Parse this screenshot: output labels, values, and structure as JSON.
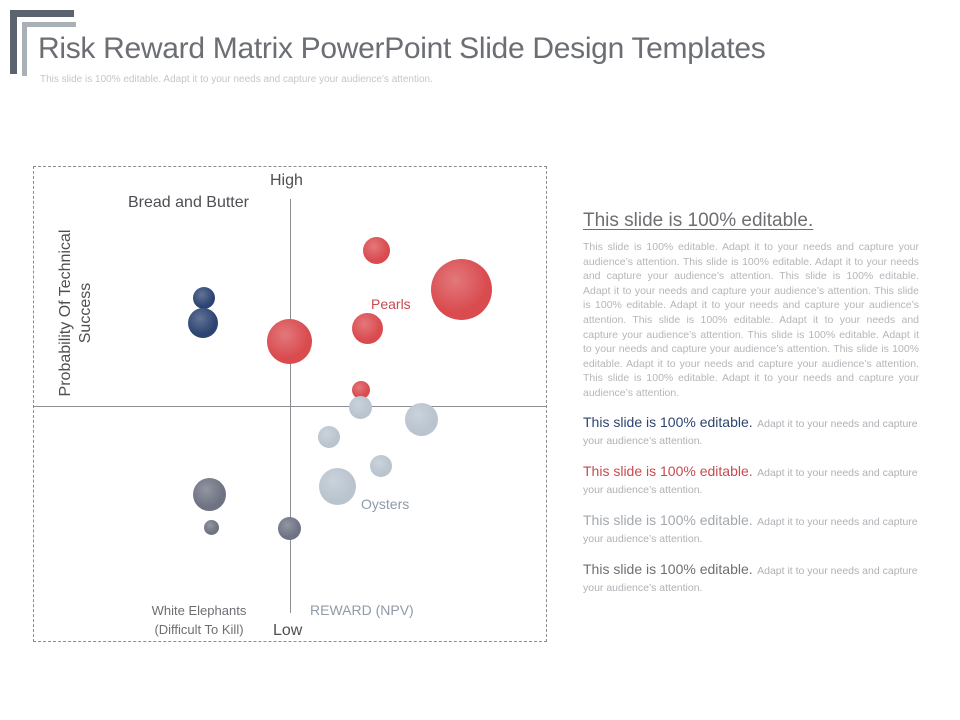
{
  "slide": {
    "title": "Risk Reward Matrix PowerPoint Slide Design Templates",
    "subtitle": "This slide is 100% editable. Adapt it to your needs and capture your audience’s attention."
  },
  "matrix": {
    "high_label": "High",
    "low_label": "Low",
    "y_axis_label": "Probability Of Technical Success",
    "x_axis_label": "REWARD (NPV)",
    "quadrants": {
      "top_left": "Bread and Butter",
      "top_right": "Pearls",
      "bottom_right": "Oysters",
      "bottom_left": "White Elephants (Difficult To Kill)"
    },
    "bubble_colors": {
      "navy": "#2d4472",
      "red": "#d94b4f",
      "light_gray": "#b9c4cf",
      "dark_gray": "#6e7282"
    }
  },
  "panel": {
    "heading": "This slide is 100% editable.",
    "body": "This slide is 100% editable. Adapt it to your needs and capture your audience’s attention. This slide is 100% editable. Adapt it to your needs and capture your audience’s attention. This slide is 100% editable. Adapt it to your needs and capture your audience’s attention. This slide is 100% editable. Adapt it to your needs and capture your audience’s attention. This slide is 100% editable. Adapt it to your needs and capture your audience’s attention. This slide is 100% editable. Adapt it to your needs and capture your audience’s attention. This slide is 100% editable. Adapt it to your needs and capture your audience’s attention. This slide is 100% editable. Adapt it to your needs and capture your audience’s attention.",
    "items": [
      {
        "head": "This slide is 100% editable.",
        "rest": "Adapt it to your needs and capture your audience’s attention.",
        "color": "#2d4472"
      },
      {
        "head": "This slide is 100% editable.",
        "rest": "Adapt it to your needs and capture your audience’s attention.",
        "color": "#c84a4f"
      },
      {
        "head": "This slide is 100% editable.",
        "rest": "Adapt it to your needs and capture your audience’s attention.",
        "color": "#a3a8ae"
      },
      {
        "head": "This slide is 100% editable.",
        "rest": "Adapt it to your needs and capture your audience’s attention.",
        "color": "#6d6f73"
      }
    ]
  }
}
